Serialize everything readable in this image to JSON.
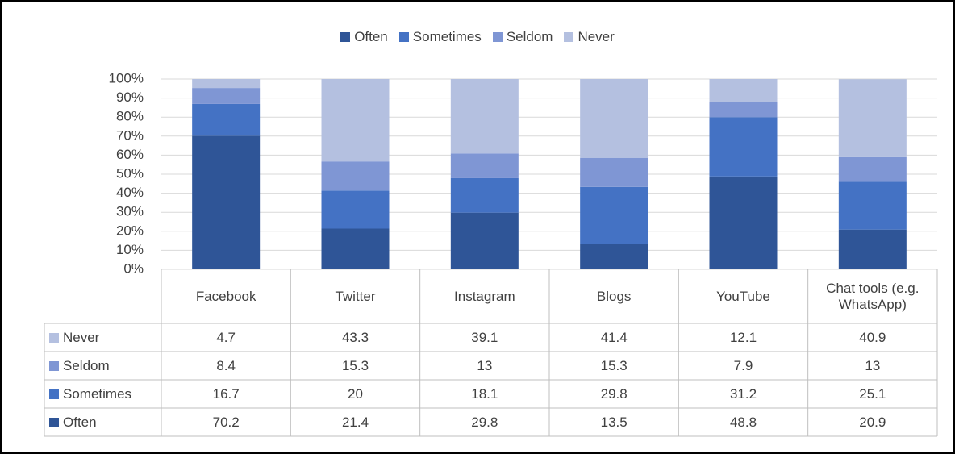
{
  "chart_data": {
    "type": "stacked_bar",
    "categories": [
      "Facebook",
      "Twitter",
      "Instagram",
      "Blogs",
      "YouTube",
      "Chat tools (e.g. WhatsApp)"
    ],
    "series": [
      {
        "name": "Often",
        "color": "#2f5597",
        "values": [
          70.2,
          21.4,
          29.8,
          13.5,
          48.8,
          20.9
        ]
      },
      {
        "name": "Sometimes",
        "color": "#4472c4",
        "values": [
          16.7,
          20,
          18.1,
          29.8,
          31.2,
          25.1
        ]
      },
      {
        "name": "Seldom",
        "color": "#7f96d4",
        "values": [
          8.4,
          15.3,
          13,
          15.3,
          7.9,
          13
        ]
      },
      {
        "name": "Never",
        "color": "#b4c0e0",
        "values": [
          4.7,
          43.3,
          39.1,
          41.4,
          12.1,
          40.9
        ]
      }
    ],
    "ylim": [
      0,
      100
    ],
    "yticks": [
      {
        "value": 0,
        "label": "0%"
      },
      {
        "value": 10,
        "label": "10%"
      },
      {
        "value": 20,
        "label": "20%"
      },
      {
        "value": 30,
        "label": "30%"
      },
      {
        "value": 40,
        "label": "40%"
      },
      {
        "value": 50,
        "label": "50%"
      },
      {
        "value": 60,
        "label": "60%"
      },
      {
        "value": 70,
        "label": "70%"
      },
      {
        "value": 80,
        "label": "80%"
      },
      {
        "value": 90,
        "label": "90%"
      },
      {
        "value": 100,
        "label": "100%"
      }
    ],
    "grid": true,
    "legend": "top",
    "data_table": true
  }
}
